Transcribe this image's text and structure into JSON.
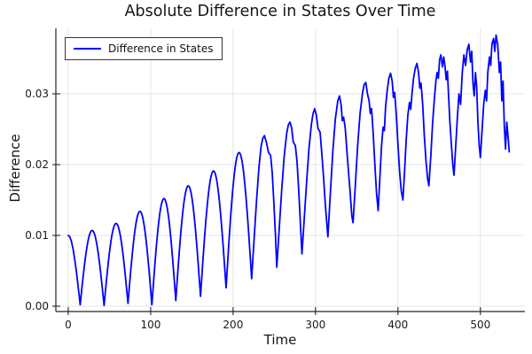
{
  "chart_data": {
    "type": "line",
    "title": "Absolute Difference in States Over Time",
    "xlabel": "Time",
    "ylabel": "Difference",
    "legend": {
      "position": "top-left",
      "entries": [
        {
          "label": "Difference in States",
          "color": "#0000ff"
        }
      ]
    },
    "axes": {
      "xlim": [
        -15,
        554
      ],
      "ylim": [
        -0.00075,
        0.03925
      ],
      "x_ticks": [
        0,
        100,
        200,
        300,
        400,
        500
      ],
      "x_tick_labels": [
        "0",
        "100",
        "200",
        "300",
        "400",
        "500"
      ],
      "y_ticks": [
        0.0,
        0.01,
        0.02,
        0.03
      ],
      "y_tick_labels": [
        "0.00",
        "0.01",
        "0.02",
        "0.03"
      ],
      "grid": true
    },
    "colors": {
      "line": "#0000ff",
      "grid": "#e4e4e4",
      "spine": "#242424",
      "tick_text": "#1a1a1a",
      "background": "#ffffff"
    },
    "peaks": [
      [
        29,
        0.0107
      ],
      [
        58,
        0.0117
      ],
      [
        87,
        0.0134
      ],
      [
        116,
        0.0152
      ],
      [
        146,
        0.017
      ],
      [
        177,
        0.0191
      ],
      [
        208,
        0.0217
      ],
      [
        238,
        0.0241
      ],
      [
        269,
        0.026
      ],
      [
        299,
        0.0279
      ],
      [
        329,
        0.0297
      ],
      [
        361,
        0.0316
      ],
      [
        391,
        0.0329
      ],
      [
        423,
        0.0343
      ],
      [
        452,
        0.0355
      ],
      [
        486,
        0.037
      ],
      [
        519,
        0.0383
      ]
    ],
    "troughs": [
      [
        14.5,
        0.0002
      ],
      [
        43.5,
        0.0001
      ],
      [
        72.5,
        0.0004
      ],
      [
        101.5,
        0.0002
      ],
      [
        130.5,
        0.0008
      ],
      [
        160.5,
        0.0014
      ],
      [
        191.5,
        0.0026
      ],
      [
        222.5,
        0.0039
      ],
      [
        253,
        0.0055
      ],
      [
        283.5,
        0.0074
      ],
      [
        315,
        0.0098
      ],
      [
        345.5,
        0.0118
      ],
      [
        376,
        0.0135
      ],
      [
        406,
        0.015
      ],
      [
        437.5,
        0.017
      ],
      [
        468,
        0.0185
      ],
      [
        500,
        0.021
      ]
    ],
    "series": [
      {
        "name": "Difference in States",
        "color": "#0000ff",
        "line_width": 1.8,
        "segments": [
          {
            "type": "points",
            "pts": [
              [
                0,
                0.01
              ],
              [
                2,
                0.0098
              ],
              [
                4,
                0.0091
              ],
              [
                6,
                0.008
              ],
              [
                8,
                0.0065
              ],
              [
                10,
                0.0048
              ],
              [
                12,
                0.0028
              ],
              [
                13.5,
                0.0013
              ],
              [
                14.5,
                0.0002
              ]
            ]
          },
          {
            "type": "arch",
            "t0": 14.5,
            "y0": 0.0002,
            "tp": 29,
            "yp": 0.0107,
            "t1": 43.5,
            "y1": 0.0001
          },
          {
            "type": "arch",
            "t0": 43.5,
            "y0": 0.0001,
            "tp": 58,
            "yp": 0.0117,
            "t1": 72.5,
            "y1": 0.0004
          },
          {
            "type": "arch",
            "t0": 72.5,
            "y0": 0.0004,
            "tp": 87,
            "yp": 0.0134,
            "t1": 101.5,
            "y1": 0.0002
          },
          {
            "type": "arch",
            "t0": 101.5,
            "y0": 0.0002,
            "tp": 116,
            "yp": 0.0152,
            "t1": 130.5,
            "y1": 0.0008
          },
          {
            "type": "arch",
            "t0": 130.5,
            "y0": 0.0008,
            "tp": 146,
            "yp": 0.017,
            "t1": 160.5,
            "y1": 0.0014
          },
          {
            "type": "arch",
            "t0": 160.5,
            "y0": 0.0014,
            "tp": 177,
            "yp": 0.0191,
            "t1": 191.5,
            "y1": 0.0026
          },
          {
            "type": "arch",
            "t0": 191.5,
            "y0": 0.0026,
            "tp": 208,
            "yp": 0.0217,
            "t1": 222.5,
            "y1": 0.0039
          },
          {
            "type": "points",
            "pts": [
              [
                222.5,
                0.0039
              ],
              [
                225.5,
                0.0095
              ],
              [
                228.5,
                0.015
              ],
              [
                231.5,
                0.0198
              ],
              [
                234,
                0.0226
              ],
              [
                236,
                0.0237
              ],
              [
                238,
                0.0241
              ],
              [
                240.5,
                0.0231
              ],
              [
                243,
                0.0217
              ],
              [
                245.5,
                0.0213
              ],
              [
                247.5,
                0.0188
              ],
              [
                249.5,
                0.0145
              ],
              [
                251.5,
                0.0098
              ],
              [
                253,
                0.0055
              ]
            ]
          },
          {
            "type": "points",
            "pts": [
              [
                253,
                0.0055
              ],
              [
                256,
                0.011
              ],
              [
                259,
                0.0165
              ],
              [
                262,
                0.0212
              ],
              [
                265,
                0.0244
              ],
              [
                267,
                0.0256
              ],
              [
                269,
                0.026
              ],
              [
                271,
                0.0252
              ],
              [
                273,
                0.0232
              ],
              [
                275.5,
                0.0227
              ],
              [
                277.5,
                0.0205
              ],
              [
                279.5,
                0.0166
              ],
              [
                281.5,
                0.012
              ],
              [
                283.5,
                0.0074
              ]
            ]
          },
          {
            "type": "points",
            "pts": [
              [
                283.5,
                0.0074
              ],
              [
                286,
                0.0118
              ],
              [
                289,
                0.0172
              ],
              [
                292,
                0.0222
              ],
              [
                295,
                0.0257
              ],
              [
                297,
                0.0272
              ],
              [
                299,
                0.0279
              ],
              [
                301,
                0.027
              ],
              [
                303,
                0.0251
              ],
              [
                305.5,
                0.0246
              ],
              [
                307,
                0.0225
              ],
              [
                309.5,
                0.0186
              ],
              [
                312,
                0.0142
              ],
              [
                315,
                0.0098
              ]
            ]
          },
          {
            "type": "points",
            "pts": [
              [
                315,
                0.0098
              ],
              [
                318,
                0.016
              ],
              [
                321,
                0.0219
              ],
              [
                324,
                0.0264
              ],
              [
                327,
                0.029
              ],
              [
                329,
                0.0297
              ],
              [
                331,
                0.0285
              ],
              [
                332.5,
                0.0262
              ],
              [
                334,
                0.0267
              ],
              [
                336,
                0.0252
              ],
              [
                339,
                0.0205
              ],
              [
                342,
                0.0161
              ],
              [
                344,
                0.0128
              ],
              [
                345.5,
                0.0118
              ]
            ]
          },
          {
            "type": "points",
            "pts": [
              [
                345.5,
                0.0118
              ],
              [
                348,
                0.0165
              ],
              [
                351,
                0.0225
              ],
              [
                354,
                0.0272
              ],
              [
                357,
                0.0301
              ],
              [
                359,
                0.0313
              ],
              [
                361,
                0.0316
              ],
              [
                363,
                0.03
              ],
              [
                365,
                0.029
              ],
              [
                366.5,
                0.0272
              ],
              [
                368,
                0.0279
              ],
              [
                370,
                0.0243
              ],
              [
                372,
                0.02
              ],
              [
                374,
                0.016
              ],
              [
                376,
                0.0135
              ]
            ]
          },
          {
            "type": "points",
            "pts": [
              [
                376,
                0.0135
              ],
              [
                378,
                0.018
              ],
              [
                380,
                0.0225
              ],
              [
                382,
                0.0253
              ],
              [
                383.5,
                0.0248
              ],
              [
                385,
                0.0282
              ],
              [
                387,
                0.0305
              ],
              [
                389,
                0.0322
              ],
              [
                391,
                0.0329
              ],
              [
                393,
                0.0318
              ],
              [
                394.5,
                0.0295
              ],
              [
                396,
                0.0302
              ],
              [
                398,
                0.027
              ],
              [
                400,
                0.0228
              ],
              [
                402,
                0.019
              ],
              [
                404,
                0.0163
              ],
              [
                406,
                0.015
              ]
            ]
          },
          {
            "type": "points",
            "pts": [
              [
                406,
                0.015
              ],
              [
                408,
                0.019
              ],
              [
                410,
                0.0235
              ],
              [
                412,
                0.027
              ],
              [
                414,
                0.0288
              ],
              [
                415.5,
                0.0278
              ],
              [
                417,
                0.03
              ],
              [
                419,
                0.0323
              ],
              [
                421,
                0.0336
              ],
              [
                423,
                0.0343
              ],
              [
                425,
                0.033
              ],
              [
                426.5,
                0.0308
              ],
              [
                428,
                0.0315
              ],
              [
                430,
                0.0285
              ],
              [
                432,
                0.024
              ],
              [
                434,
                0.0205
              ],
              [
                436,
                0.018
              ],
              [
                437.5,
                0.017
              ]
            ]
          },
          {
            "type": "points",
            "pts": [
              [
                437.5,
                0.017
              ],
              [
                440,
                0.0215
              ],
              [
                442,
                0.0258
              ],
              [
                444,
                0.029
              ],
              [
                446,
                0.0318
              ],
              [
                447.5,
                0.033
              ],
              [
                449,
                0.0322
              ],
              [
                450.5,
                0.0348
              ],
              [
                452,
                0.0355
              ],
              [
                454,
                0.0338
              ],
              [
                455.5,
                0.0352
              ],
              [
                457,
                0.034
              ],
              [
                458.5,
                0.032
              ],
              [
                460,
                0.0332
              ],
              [
                461.5,
                0.0295
              ],
              [
                463,
                0.026
              ],
              [
                465,
                0.0225
              ],
              [
                466.5,
                0.02
              ],
              [
                468,
                0.0185
              ]
            ]
          },
          {
            "type": "points",
            "pts": [
              [
                468,
                0.0185
              ],
              [
                470,
                0.0225
              ],
              [
                472,
                0.0265
              ],
              [
                474,
                0.03
              ],
              [
                476,
                0.0285
              ],
              [
                478,
                0.033
              ],
              [
                480,
                0.0355
              ],
              [
                482,
                0.034
              ],
              [
                484,
                0.0362
              ],
              [
                486,
                0.037
              ],
              [
                488,
                0.0345
              ],
              [
                489.5,
                0.036
              ],
              [
                491,
                0.0315
              ],
              [
                492.5,
                0.0297
              ],
              [
                494,
                0.033
              ],
              [
                495.5,
                0.031
              ],
              [
                497,
                0.026
              ],
              [
                498.5,
                0.0228
              ],
              [
                500,
                0.021
              ]
            ]
          },
          {
            "type": "points",
            "pts": [
              [
                500,
                0.021
              ],
              [
                502,
                0.0248
              ],
              [
                504,
                0.0285
              ],
              [
                506,
                0.0305
              ],
              [
                507.5,
                0.029
              ],
              [
                509,
                0.033
              ],
              [
                511,
                0.0352
              ],
              [
                512.5,
                0.034
              ],
              [
                514,
                0.037
              ],
              [
                516,
                0.0378
              ],
              [
                517.5,
                0.036
              ],
              [
                519,
                0.0383
              ],
              [
                521,
                0.037
              ],
              [
                523,
                0.033
              ],
              [
                524.5,
                0.0345
              ],
              [
                526,
                0.029
              ],
              [
                527.5,
                0.0318
              ],
              [
                529,
                0.0255
              ],
              [
                530.5,
                0.0222
              ],
              [
                532,
                0.026
              ],
              [
                533.5,
                0.024
              ],
              [
                535,
                0.0218
              ]
            ]
          }
        ]
      }
    ]
  }
}
